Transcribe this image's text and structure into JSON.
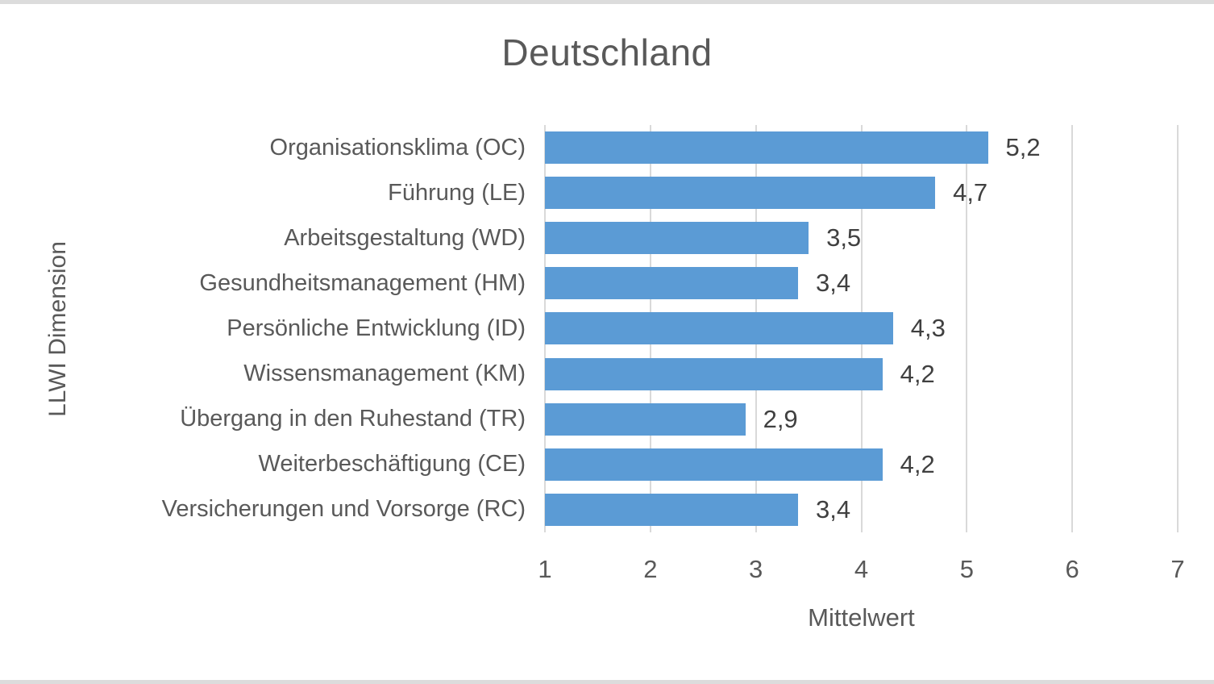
{
  "page": {
    "background": "#FFFFFF",
    "edge_strip_color": "#DCDCDC"
  },
  "chart_data": {
    "type": "bar",
    "orientation": "horizontal",
    "title": "Deutschland",
    "xlabel": "Mittelwert",
    "ylabel": "LLWI Dimension",
    "xlim": [
      1,
      7
    ],
    "x_ticks": [
      "1",
      "2",
      "3",
      "4",
      "5",
      "6",
      "7"
    ],
    "grid": true,
    "legend": false,
    "categories": [
      "Organisationsklima (OC)",
      "Führung (LE)",
      "Arbeitsgestaltung (WD)",
      "Gesundheitsmanagement (HM)",
      "Persönliche Entwicklung (ID)",
      "Wissensmanagement (KM)",
      "Übergang in den Ruhestand (TR)",
      "Weiterbeschäftigung (CE)",
      "Versicherungen und Vorsorge (RC)"
    ],
    "values": [
      5.2,
      4.7,
      3.5,
      3.4,
      4.3,
      4.2,
      2.9,
      4.2,
      3.4
    ],
    "value_labels": [
      "5,2",
      "4,7",
      "3,5",
      "3,4",
      "4,3",
      "4,2",
      "2,9",
      "4,2",
      "3,4"
    ],
    "colors": {
      "bar": "#5B9BD5",
      "gridline": "#D9D9D9",
      "axis_text": "#595959",
      "value_label": "#404040"
    }
  }
}
